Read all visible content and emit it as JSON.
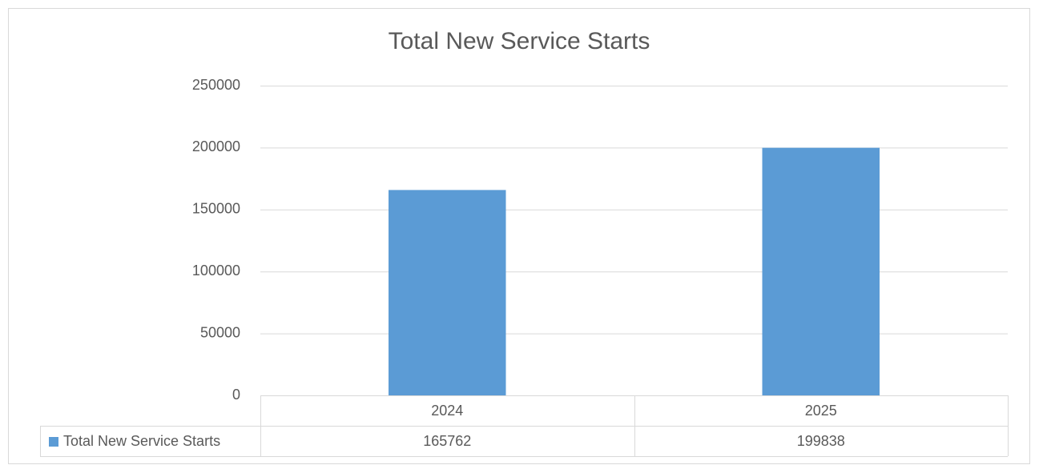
{
  "chart_data": {
    "type": "bar",
    "title": "Total New Service Starts",
    "categories": [
      "2024",
      "2025"
    ],
    "series": [
      {
        "name": "Total New Service Starts",
        "color": "#5b9bd5",
        "values": [
          165762,
          199838
        ]
      }
    ],
    "ylim": [
      0,
      250000
    ],
    "yticks": [
      0,
      50000,
      100000,
      150000,
      200000,
      250000
    ],
    "grid": true
  }
}
